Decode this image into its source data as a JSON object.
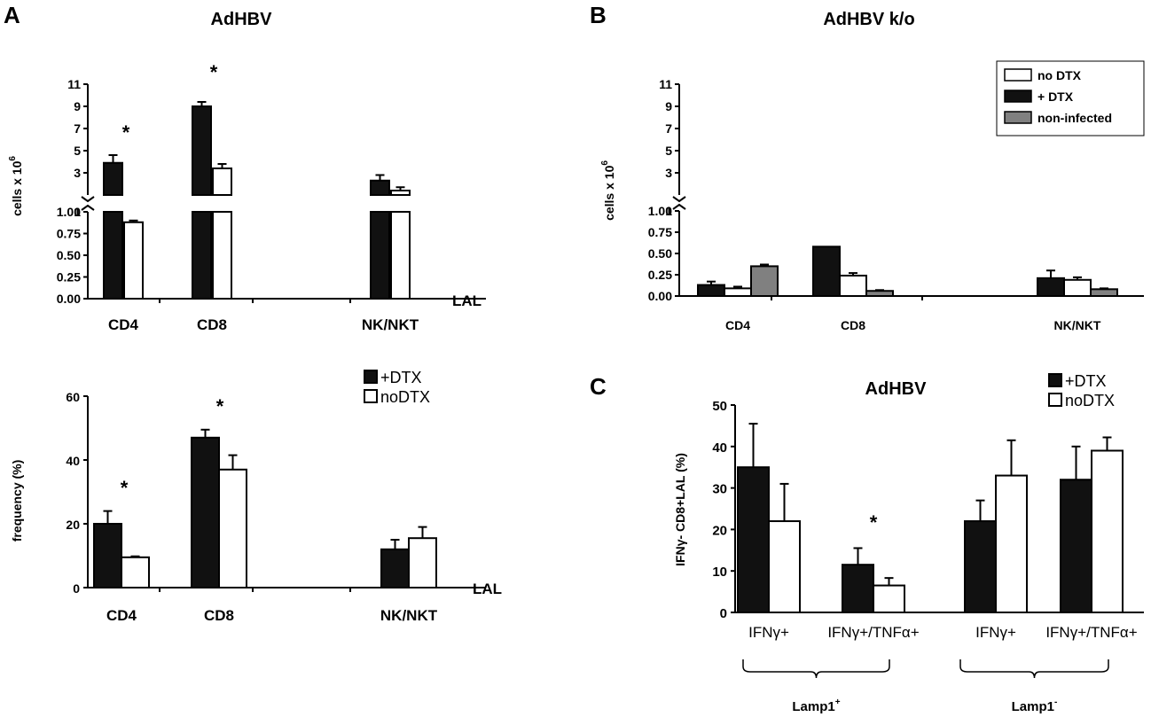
{
  "chart_data": [
    {
      "id": "A-top",
      "type": "bar",
      "panel_label": "A",
      "title": "AdHBV",
      "ylabel": "cells x 10",
      "ylabel_sup": "6",
      "y_axis": "broken",
      "ylim_lower": [
        0,
        1
      ],
      "ylim_upper": [
        1,
        11
      ],
      "yticks_lower": [
        "0.00",
        "0.25",
        "0.50",
        "0.75",
        "1.00"
      ],
      "yticks_upper": [
        "1",
        "3",
        "5",
        "7",
        "9",
        "11"
      ],
      "xlabel": "LAL",
      "categories": [
        "CD4",
        "CD8",
        "",
        "NK/NKT"
      ],
      "series": [
        {
          "name": "+DTX",
          "color": "#111111",
          "values": [
            3.9,
            9.0,
            0,
            2.3
          ],
          "errors": [
            0.7,
            0.4,
            0,
            0.5
          ]
        },
        {
          "name": "noDTX",
          "color": "#ffffff",
          "values": [
            0.88,
            3.4,
            0,
            1.4
          ],
          "errors": [
            0.02,
            0.4,
            0,
            0.3
          ]
        }
      ],
      "annotations": [
        "*",
        "*"
      ]
    },
    {
      "id": "A-bottom",
      "type": "bar",
      "title": "",
      "ylabel": "frequency (%)",
      "ylim": [
        0,
        60
      ],
      "yticks": [
        "0",
        "20",
        "40",
        "60"
      ],
      "xlabel": "LAL",
      "categories": [
        "CD4",
        "CD8",
        "",
        "NK/NKT"
      ],
      "legend": {
        "position": "top-right",
        "entries": [
          "+DTX",
          "noDTX"
        ]
      },
      "series": [
        {
          "name": "+DTX",
          "color": "#111111",
          "values": [
            20,
            47,
            0,
            12
          ],
          "errors": [
            4,
            2.5,
            0,
            3
          ]
        },
        {
          "name": "noDTX",
          "color": "#ffffff",
          "values": [
            9.5,
            37,
            0,
            15.5
          ],
          "errors": [
            0.3,
            4.5,
            0,
            3.5
          ]
        }
      ],
      "annotations": [
        "*",
        "*"
      ]
    },
    {
      "id": "B",
      "type": "bar",
      "panel_label": "B",
      "title": "AdHBV k/o",
      "ylabel": "cells x 10",
      "ylabel_sup": "6",
      "y_axis": "broken",
      "ylim_lower": [
        0,
        1
      ],
      "ylim_upper": [
        1,
        11
      ],
      "yticks_lower": [
        "0.00",
        "0.25",
        "0.50",
        "0.75",
        "1.00"
      ],
      "yticks_upper": [
        "1",
        "3",
        "5",
        "7",
        "9",
        "11"
      ],
      "categories": [
        "CD4",
        "CD8",
        "",
        "NK/NKT"
      ],
      "legend": {
        "position": "top-right",
        "entries": [
          "no DTX",
          "+ DTX",
          "non-infected"
        ]
      },
      "series": [
        {
          "name": "+ DTX",
          "color": "#111111",
          "values": [
            0.13,
            0.58,
            0,
            0.21
          ],
          "errors": [
            0.04,
            0,
            0,
            0.09
          ]
        },
        {
          "name": "no DTX",
          "color": "#ffffff",
          "values": [
            0.09,
            0.24,
            0,
            0.19
          ],
          "errors": [
            0.02,
            0.03,
            0,
            0.03
          ]
        },
        {
          "name": "non-infected",
          "color": "#808080",
          "values": [
            0.35,
            0.06,
            0,
            0.08
          ],
          "errors": [
            0.02,
            0.01,
            0,
            0.01
          ]
        }
      ]
    },
    {
      "id": "C",
      "type": "bar",
      "panel_label": "C",
      "title": "AdHBV",
      "ylabel": "IFNγ- CD8+LAL (%)",
      "ylim": [
        0,
        50
      ],
      "yticks": [
        "0",
        "10",
        "20",
        "30",
        "40",
        "50"
      ],
      "categories": [
        "IFNγ+",
        "IFNγ+/TNFα+",
        "IFNγ+",
        "IFNγ+/TNFα+"
      ],
      "groups": [
        {
          "label": "Lamp1",
          "sup": "+"
        },
        {
          "label": "Lamp1",
          "sup": "-"
        }
      ],
      "legend": {
        "position": "top-right",
        "entries": [
          "+DTX",
          "noDTX"
        ]
      },
      "series": [
        {
          "name": "+DTX",
          "color": "#111111",
          "values": [
            35,
            11.5,
            22,
            32
          ],
          "errors": [
            10.5,
            4,
            5,
            8
          ]
        },
        {
          "name": "noDTX",
          "color": "#ffffff",
          "values": [
            22,
            6.5,
            33,
            39
          ],
          "errors": [
            9,
            1.8,
            8.5,
            3.2
          ]
        }
      ],
      "annotations": [
        "*"
      ]
    }
  ]
}
